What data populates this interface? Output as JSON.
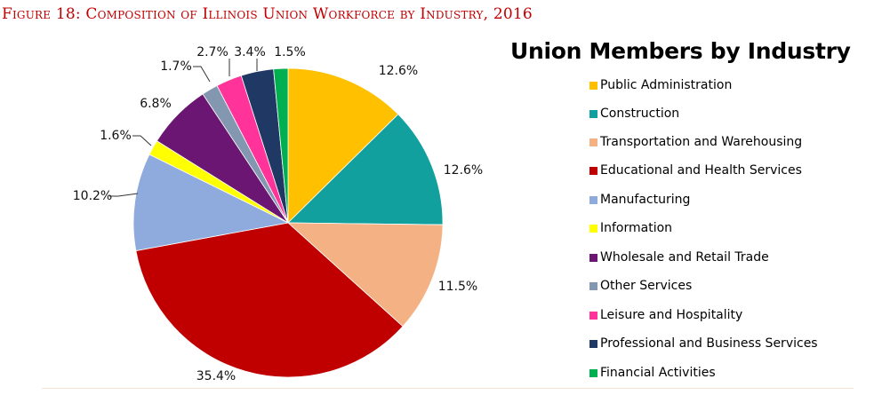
{
  "figure_title": "Figure 18: Composition of Illinois Union Workforce by Industry, 2016",
  "chart_data": {
    "type": "pie",
    "title": "Union Members by Industry",
    "unit": "%",
    "legend_position": "right",
    "categories": [
      "Public Administration",
      "Construction",
      "Transportation and Warehousing",
      "Educational and Health Services",
      "Manufacturing",
      "Information",
      "Wholesale and Retail Trade",
      "Other Services",
      "Leisure and Hospitality",
      "Professional and Business Services",
      "Financial Activities"
    ],
    "values": [
      12.6,
      12.6,
      11.5,
      35.4,
      10.2,
      1.6,
      6.8,
      1.7,
      2.7,
      3.4,
      1.5
    ],
    "labels": [
      "12.6%",
      "12.6%",
      "11.5%",
      "35.4%",
      "10.2%",
      "1.6%",
      "6.8%",
      "1.7%",
      "2.7%",
      "3.4%",
      "1.5%"
    ],
    "colors": [
      "#FFC000",
      "#12A09E",
      "#F4B183",
      "#C00000",
      "#8FAADC",
      "#FFFF00",
      "#6B1672",
      "#8497B0",
      "#FF3399",
      "#203864",
      "#00B050"
    ]
  },
  "legend": {
    "items": [
      {
        "label": "Public Administration",
        "color": "#FFC000"
      },
      {
        "label": "Construction",
        "color": "#12A09E"
      },
      {
        "label": "Transportation and Warehousing",
        "color": "#F4B183"
      },
      {
        "label": "Educational and Health Services",
        "color": "#C00000"
      },
      {
        "label": "Manufacturing",
        "color": "#8FAADC"
      },
      {
        "label": "Information",
        "color": "#FFFF00"
      },
      {
        "label": "Wholesale and Retail Trade",
        "color": "#6B1672"
      },
      {
        "label": "Other Services",
        "color": "#8497B0"
      },
      {
        "label": "Leisure and Hospitality",
        "color": "#FF3399"
      },
      {
        "label": "Professional and Business Services",
        "color": "#203864"
      },
      {
        "label": "Financial Activities",
        "color": "#00B050"
      }
    ]
  }
}
